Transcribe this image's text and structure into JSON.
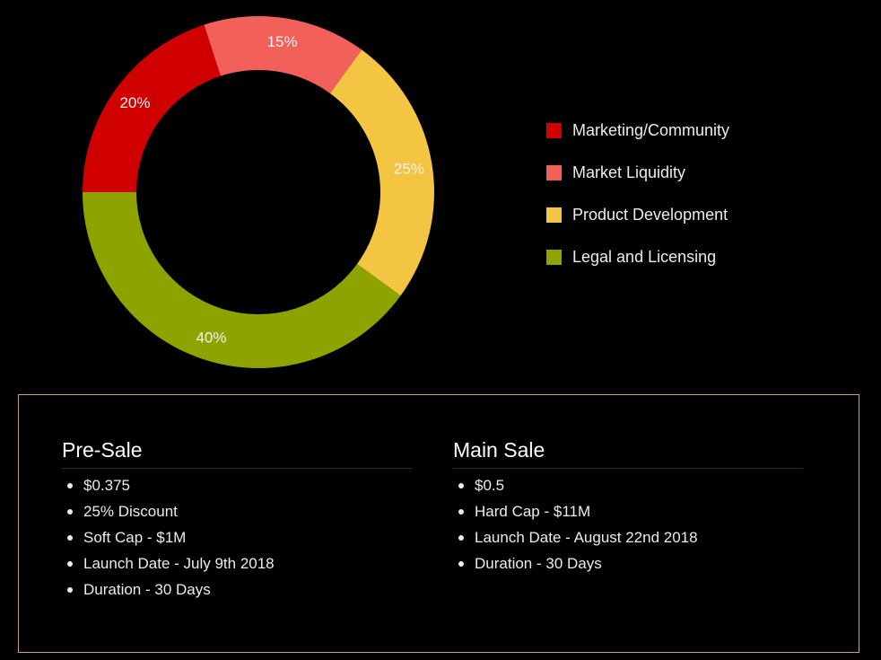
{
  "chart_data": {
    "type": "pie",
    "variant": "donut",
    "slices": [
      {
        "label": "Marketing/Community",
        "value": 20,
        "display": "20%",
        "color": "#d10000"
      },
      {
        "label": "Market Liquidity",
        "value": 15,
        "display": "15%",
        "color": "#f2605a"
      },
      {
        "label": "Product Development",
        "value": 25,
        "display": "25%",
        "color": "#f4c542"
      },
      {
        "label": "Legal and Licensing",
        "value": 40,
        "display": "40%",
        "color": "#8fa300"
      }
    ],
    "legend_position": "right"
  },
  "legend": [
    {
      "label": "Marketing/Community",
      "color": "#d10000"
    },
    {
      "label": "Market Liquidity",
      "color": "#f2605a"
    },
    {
      "label": "Product Development",
      "color": "#f4c542"
    },
    {
      "label": "Legal and Licensing",
      "color": "#8fa300"
    }
  ],
  "presale": {
    "title": "Pre-Sale",
    "items": [
      "$0.375",
      "25% Discount",
      "Soft Cap - $1M",
      "Launch Date - July 9th 2018",
      "Duration - 30 Days"
    ]
  },
  "mainsale": {
    "title": "Main Sale",
    "items": [
      "$0.5",
      "Hard Cap - $11M",
      "Launch Date - August 22nd 2018",
      "Duration - 30 Days"
    ]
  },
  "colors": {
    "background": "#000000",
    "box_border": "#c9a27a"
  }
}
